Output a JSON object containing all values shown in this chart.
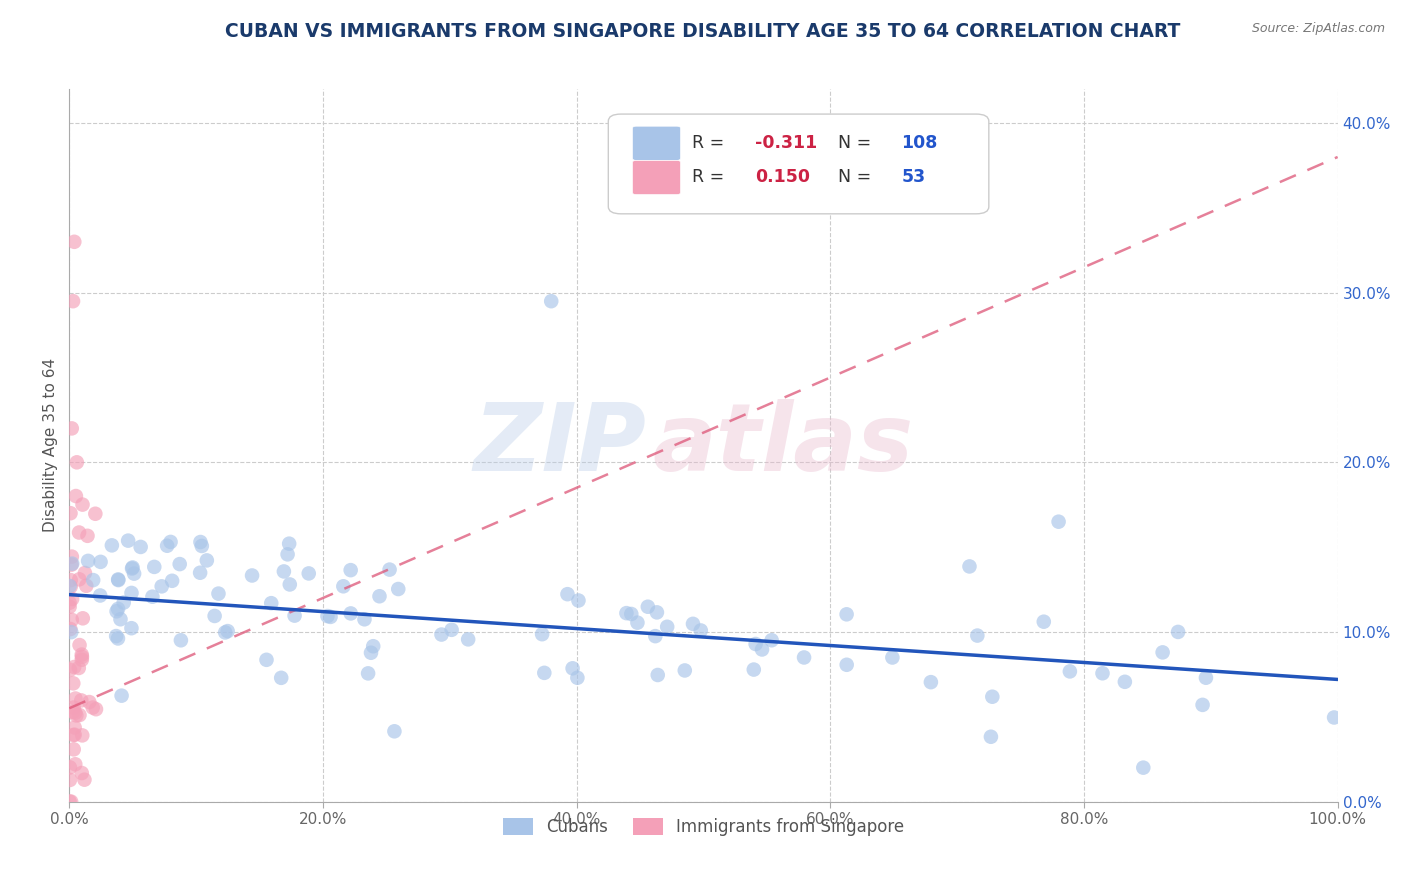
{
  "title": "CUBAN VS IMMIGRANTS FROM SINGAPORE DISABILITY AGE 35 TO 64 CORRELATION CHART",
  "source": "Source: ZipAtlas.com",
  "ylabel": "Disability Age 35 to 64",
  "xlim": [
    0.0,
    1.0
  ],
  "ylim": [
    0.0,
    0.42
  ],
  "yticks": [
    0.0,
    0.1,
    0.2,
    0.3,
    0.4
  ],
  "xticks": [
    0.0,
    0.2,
    0.4,
    0.6,
    0.8,
    1.0
  ],
  "xtick_labels": [
    "0.0%",
    "20.0%",
    "40.0%",
    "60.0%",
    "80.0%",
    "100.0%"
  ],
  "ytick_labels": [
    "0.0%",
    "10.0%",
    "20.0%",
    "30.0%",
    "40.0%"
  ],
  "cubans_R": -0.311,
  "cubans_N": 108,
  "singapore_R": 0.15,
  "singapore_N": 53,
  "blue_color": "#a8c4e8",
  "blue_edge_color": "#7aaad4",
  "blue_line_color": "#2255bb",
  "pink_color": "#f4a0b8",
  "pink_edge_color": "#e07090",
  "pink_line_color": "#dd5577",
  "title_color": "#1a3a6b",
  "legend_R_neg_color": "#cc2244",
  "legend_R_pos_color": "#cc2244",
  "legend_N_color": "#2255cc",
  "blue_line_x0": 0.0,
  "blue_line_x1": 1.0,
  "blue_line_y0": 0.122,
  "blue_line_y1": 0.072,
  "pink_line_x0": 0.0,
  "pink_line_x1": 1.0,
  "pink_line_y0": 0.055,
  "pink_line_y1": 0.38
}
